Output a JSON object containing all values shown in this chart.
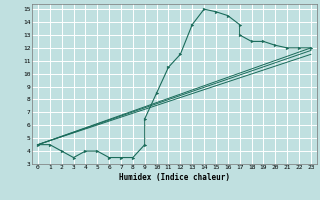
{
  "title": "",
  "xlabel": "Humidex (Indice chaleur)",
  "ylabel": "",
  "bg_color": "#c0e0e0",
  "grid_color": "#ffffff",
  "line_color": "#1a6b5a",
  "xlim": [
    -0.5,
    23.5
  ],
  "ylim": [
    3,
    15.4
  ],
  "xticks": [
    0,
    1,
    2,
    3,
    4,
    5,
    6,
    7,
    8,
    9,
    10,
    11,
    12,
    13,
    14,
    15,
    16,
    17,
    18,
    19,
    20,
    21,
    22,
    23
  ],
  "yticks": [
    3,
    4,
    5,
    6,
    7,
    8,
    9,
    10,
    11,
    12,
    13,
    14,
    15
  ],
  "curve_x": [
    0,
    1,
    2,
    3,
    4,
    5,
    6,
    7,
    8,
    9,
    9,
    10,
    11,
    12,
    13,
    14,
    15,
    16,
    17,
    17,
    18,
    19,
    20,
    21,
    22,
    23
  ],
  "curve_y": [
    4.5,
    4.5,
    4.0,
    3.5,
    4.0,
    4.0,
    3.5,
    3.5,
    3.5,
    4.5,
    6.5,
    8.5,
    10.5,
    11.5,
    13.8,
    15.0,
    14.8,
    14.5,
    13.8,
    13.0,
    12.5,
    12.5,
    12.2,
    12.0,
    12.0,
    12.0
  ],
  "line1_x": [
    0,
    23
  ],
  "line1_y": [
    4.5,
    12.0
  ],
  "line2_x": [
    0,
    23
  ],
  "line2_y": [
    4.5,
    11.5
  ],
  "line3_x": [
    0,
    23
  ],
  "line3_y": [
    4.5,
    11.8
  ]
}
